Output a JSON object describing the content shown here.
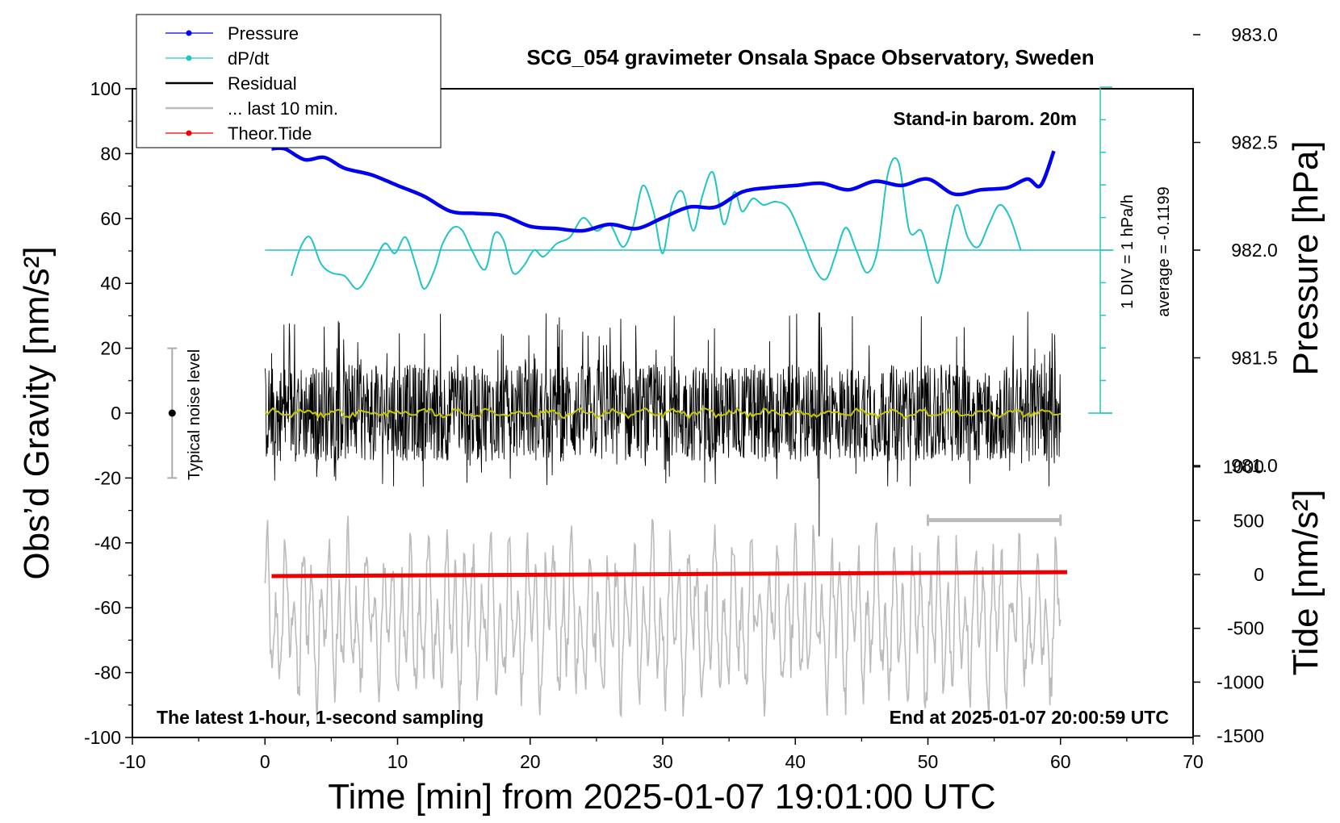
{
  "chart_data": {
    "type": "line",
    "title": "SCG_054 gravimeter Onsala Space Observatory, Sweden",
    "xlabel": "Time [min] from 2025-01-07 19:01:00 UTC",
    "ylabel_left": "Obs’d Gravity [nm/s²]",
    "ylabel_right_pressure": "Pressure [hPa]",
    "ylabel_right_tide": "Tide [nm/s²]",
    "xlim": [
      -10,
      70
    ],
    "ylim_left": [
      -100,
      100
    ],
    "x_ticks": [
      "-10",
      "0",
      "10",
      "20",
      "30",
      "40",
      "50",
      "60",
      "70"
    ],
    "y_left_ticks": [
      "100",
      "80",
      "60",
      "40",
      "20",
      "0",
      "-20",
      "-40",
      "-60",
      "-80",
      "-100"
    ],
    "pressure_ticks": [
      "983.0",
      "982.5",
      "982.0",
      "981.5",
      "981.0"
    ],
    "tide_ticks": [
      "1000",
      "500",
      "0",
      "-500",
      "-1000",
      "-1500"
    ],
    "annotations": {
      "barometer": "Stand-in barom. 20m",
      "div_scale": "1 DIV = 1 hPa/h",
      "average": "average = -0.1199",
      "noise_level": "Typical noise level",
      "sampling": "The latest 1-hour, 1-second sampling",
      "end_time": "End at 2025-01-07 20:00:59 UTC"
    },
    "legend": [
      {
        "name": "Pressure",
        "color": "#0000ee"
      },
      {
        "name": "dP/dt",
        "color": "#22c4c4"
      },
      {
        "name": "Residual",
        "color": "#000000"
      },
      {
        "name": "... last 10 min.",
        "color": "#bbbbbb"
      },
      {
        "name": "Theor.Tide",
        "color": "#ee0000"
      }
    ],
    "series": [
      {
        "name": "Pressure",
        "unit": "hPa",
        "x": [
          0.5,
          1.5,
          3,
          4.5,
          6,
          8,
          10,
          12,
          14,
          16,
          18,
          20,
          22,
          24,
          26,
          28,
          30,
          32,
          34,
          36,
          38,
          40,
          42,
          44,
          46,
          48,
          50,
          52,
          54,
          56,
          57.5,
          58.5,
          59.5
        ],
        "values": [
          982.47,
          982.47,
          982.42,
          982.43,
          982.38,
          982.35,
          982.3,
          982.25,
          982.18,
          982.17,
          982.16,
          982.11,
          982.1,
          982.09,
          982.12,
          982.1,
          982.15,
          982.2,
          982.2,
          982.27,
          982.29,
          982.3,
          982.31,
          982.28,
          982.32,
          982.3,
          982.33,
          982.26,
          982.28,
          982.29,
          982.33,
          982.3,
          982.46
        ]
      },
      {
        "name": "dP/dt",
        "unit": "hPa/h",
        "average": -0.1199,
        "x": [
          2,
          2.7,
          3.4,
          4.2,
          5,
          6,
          7,
          8,
          9,
          9.8,
          10.6,
          11.4,
          12,
          12.8,
          13.4,
          14.2,
          14.9,
          15.6,
          16.6,
          17.3,
          18,
          18.7,
          19.5,
          20.3,
          21,
          22,
          23,
          24,
          25,
          26,
          27,
          27.8,
          28.5,
          29.3,
          30,
          30.7,
          31.5,
          32.3,
          33,
          33.8,
          34.6,
          35.4,
          36,
          36.8,
          37.6,
          38.5,
          39.5,
          40.5,
          41.5,
          42.3,
          43,
          43.8,
          44.6,
          45.4,
          46.2,
          47,
          47.8,
          48.6,
          49.5,
          50.2,
          50.8,
          51.5,
          52.2,
          53,
          53.8,
          54.6,
          55.4,
          56.2,
          57
        ],
        "values": [
          -0.4,
          0.05,
          0.2,
          -0.2,
          -0.35,
          -0.4,
          -0.6,
          -0.3,
          0.1,
          -0.05,
          0.2,
          -0.25,
          -0.6,
          -0.3,
          0.1,
          0.35,
          0.3,
          0.0,
          -0.3,
          0.25,
          0.15,
          -0.35,
          -0.25,
          0.0,
          -0.1,
          0.1,
          0.2,
          0.5,
          0.3,
          0.4,
          0.05,
          0.4,
          1.0,
          0.6,
          -0.05,
          0.7,
          0.9,
          0.3,
          0.85,
          1.2,
          0.4,
          0.9,
          0.6,
          0.8,
          0.7,
          0.75,
          0.65,
          0.2,
          -0.3,
          -0.45,
          -0.1,
          0.35,
          0.0,
          -0.35,
          0.0,
          1.2,
          1.35,
          0.3,
          0.3,
          -0.2,
          -0.5,
          0.15,
          0.7,
          0.2,
          0.05,
          0.4,
          0.7,
          0.5,
          0.0
        ]
      },
      {
        "name": "Residual",
        "unit": "nm/s²",
        "x_range": [
          0,
          60
        ],
        "envelope": [
          -25,
          32
        ],
        "typical_noise": [
          -20,
          20
        ],
        "spike": {
          "x": 41.8,
          "min": -38,
          "max": 31
        }
      },
      {
        "name": "... last 10 min.",
        "unit": "nm/s²",
        "scale_bar_x": [
          50,
          60
        ],
        "x_range": [
          0,
          60
        ],
        "envelope": [
          -90,
          -30
        ]
      },
      {
        "name": "Theor.Tide",
        "unit": "nm/s²",
        "x": [
          0.5,
          60.5
        ],
        "values": [
          -15,
          22
        ]
      }
    ]
  }
}
